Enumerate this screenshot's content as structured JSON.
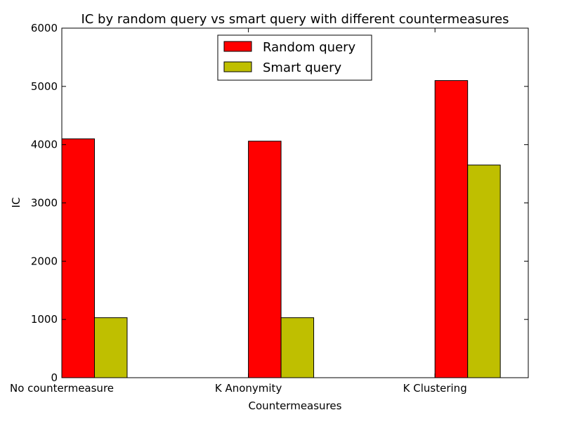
{
  "colors": {
    "random_query": "#ff0000",
    "smart_query": "#bfbf00"
  },
  "chart_data": {
    "type": "bar",
    "title": "IC by random query vs smart query with different countermeasures",
    "xlabel": "Countermeasures",
    "ylabel": "IC",
    "categories": [
      "No countermeasure",
      "K Anonymity",
      "K Clustering"
    ],
    "series": [
      {
        "name": "Random query",
        "values": [
          4100,
          4060,
          5100
        ]
      },
      {
        "name": "Smart query",
        "values": [
          1030,
          1030,
          3650
        ]
      }
    ],
    "ylim": [
      0,
      6000
    ],
    "yticks": [
      0,
      1000,
      2000,
      3000,
      4000,
      5000,
      6000
    ],
    "grid": false,
    "legend_position": "top-center"
  }
}
